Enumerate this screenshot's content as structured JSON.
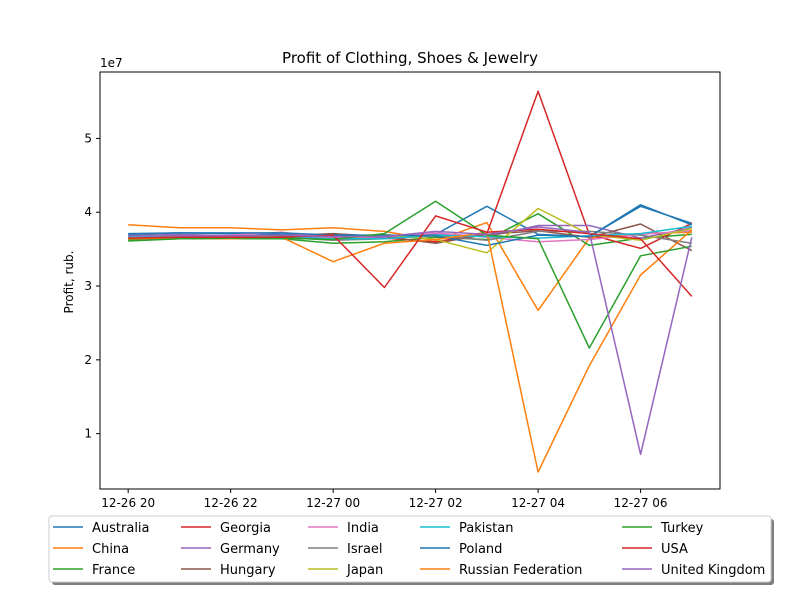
{
  "chart_data": {
    "type": "line",
    "title": "Profit of Clothing, Shoes & Jewelry",
    "xlabel": "",
    "ylabel": "Profit, rub.",
    "y_offset_text": "1e7",
    "y_scale": 10000000,
    "x_start": "2023-12-26 20:00",
    "x_step_hours": 1,
    "x_ticks": [
      {
        "label": "12-26 20",
        "t": 0
      },
      {
        "label": "12-26 22",
        "t": 2
      },
      {
        "label": "12-27 00",
        "t": 4
      },
      {
        "label": "12-27 02",
        "t": 6
      },
      {
        "label": "12-27 04",
        "t": 8
      },
      {
        "label": "12-27 06",
        "t": 10
      }
    ],
    "y_ticks": [
      1,
      2,
      3,
      4,
      5
    ],
    "xlim": [
      -0.55,
      11.55
    ],
    "ylim": [
      0.25,
      5.9
    ],
    "grid": false,
    "legend": {
      "placement": "bottom",
      "columns": 5
    },
    "series": [
      {
        "name": "Australia",
        "color": "#1f77b4",
        "values": [
          3.7,
          3.72,
          3.71,
          3.7,
          3.68,
          3.66,
          3.7,
          4.08,
          3.7,
          3.67,
          4.08,
          3.85
        ]
      },
      {
        "name": "China",
        "color": "#ff7f0e",
        "values": [
          3.83,
          3.79,
          3.79,
          3.76,
          3.79,
          3.74,
          3.62,
          3.86,
          2.67,
          3.65,
          3.71,
          3.73
        ]
      },
      {
        "name": "France",
        "color": "#2ca02c",
        "values": [
          3.62,
          3.64,
          3.64,
          3.64,
          3.58,
          3.6,
          3.66,
          3.63,
          3.98,
          3.55,
          3.65,
          3.7
        ]
      },
      {
        "name": "Georgia",
        "color": "#d62728",
        "values": [
          3.66,
          3.67,
          3.67,
          3.67,
          3.66,
          3.65,
          3.6,
          3.71,
          5.64,
          3.7,
          3.51,
          3.85
        ]
      },
      {
        "name": "Germany",
        "color": "#9467bd",
        "values": [
          3.68,
          3.7,
          3.68,
          3.67,
          3.65,
          3.65,
          3.71,
          3.67,
          3.82,
          3.82,
          3.65,
          3.79
        ]
      },
      {
        "name": "Hungary",
        "color": "#8c564b",
        "values": [
          3.68,
          3.68,
          3.68,
          3.68,
          3.71,
          3.67,
          3.58,
          3.7,
          3.75,
          3.66,
          3.84,
          3.48
        ]
      },
      {
        "name": "India",
        "color": "#e377c2",
        "values": [
          3.65,
          3.67,
          3.69,
          3.73,
          3.65,
          3.67,
          3.72,
          3.66,
          3.6,
          3.63,
          3.7,
          3.75
        ]
      },
      {
        "name": "Israel",
        "color": "#7f7f7f",
        "values": [
          3.64,
          3.65,
          3.65,
          3.66,
          3.62,
          3.64,
          3.68,
          3.62,
          3.74,
          3.74,
          3.69,
          3.58
        ]
      },
      {
        "name": "Japan",
        "color": "#bcbd22",
        "values": [
          3.67,
          3.66,
          3.68,
          3.66,
          3.63,
          3.7,
          3.63,
          3.45,
          4.05,
          3.7,
          3.62,
          3.78
        ]
      },
      {
        "name": "Pakistan",
        "color": "#17becf",
        "values": [
          3.67,
          3.68,
          3.67,
          3.66,
          3.64,
          3.64,
          3.69,
          3.67,
          3.65,
          3.68,
          3.71,
          3.81
        ]
      },
      {
        "name": "Poland",
        "color": "#1f77b4",
        "values": [
          3.71,
          3.72,
          3.72,
          3.72,
          3.69,
          3.69,
          3.68,
          3.55,
          3.69,
          3.67,
          4.1,
          3.83
        ]
      },
      {
        "name": "Russian Federation",
        "color": "#ff7f0e",
        "values": [
          3.64,
          3.65,
          3.64,
          3.66,
          3.33,
          3.58,
          3.63,
          3.73,
          0.48,
          1.92,
          3.15,
          3.76
        ]
      },
      {
        "name": "Turkey",
        "color": "#2ca02c",
        "values": [
          3.61,
          3.64,
          3.65,
          3.65,
          3.63,
          3.71,
          4.15,
          3.69,
          3.64,
          2.16,
          3.41,
          3.54
        ]
      },
      {
        "name": "USA",
        "color": "#d62728",
        "values": [
          3.65,
          3.66,
          3.66,
          3.66,
          3.69,
          2.98,
          3.95,
          3.73,
          3.77,
          3.71,
          3.64,
          2.86
        ]
      },
      {
        "name": "United Kingdom",
        "color": "#9467bd",
        "values": [
          3.68,
          3.68,
          3.68,
          3.69,
          3.67,
          3.67,
          3.74,
          3.7,
          3.8,
          3.73,
          0.72,
          3.66
        ]
      }
    ]
  }
}
